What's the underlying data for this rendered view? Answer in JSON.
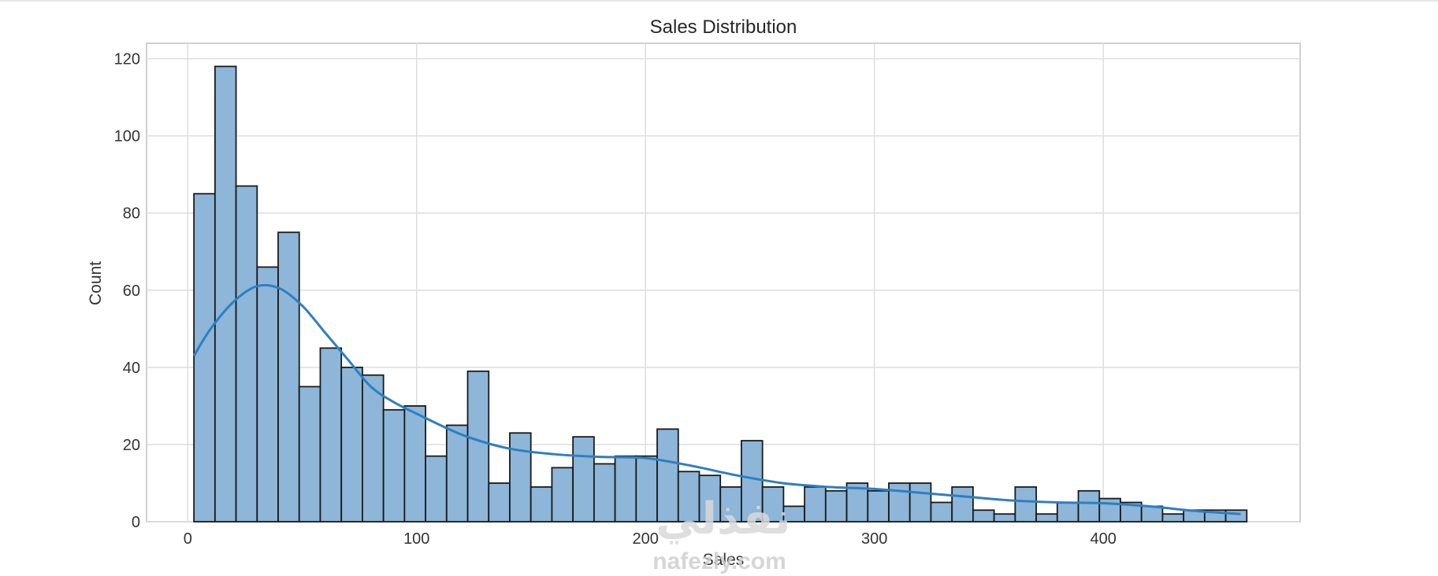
{
  "chart_data": {
    "type": "bar",
    "subtype": "histogram-with-kde",
    "title": "Sales Distribution",
    "xlabel": "Sales",
    "ylabel": "Count",
    "xlim": [
      -18,
      486
    ],
    "ylim": [
      0,
      124
    ],
    "xticks": [
      0,
      100,
      200,
      300,
      400
    ],
    "yticks": [
      0,
      20,
      40,
      60,
      80,
      100,
      120
    ],
    "grid": true,
    "bin_start": 2.7,
    "bin_width": 9.2,
    "counts": [
      85,
      118,
      87,
      66,
      75,
      35,
      45,
      40,
      38,
      29,
      30,
      17,
      25,
      39,
      10,
      23,
      9,
      14,
      22,
      15,
      17,
      17,
      24,
      13,
      12,
      9,
      21,
      9,
      4,
      9,
      8,
      10,
      8,
      10,
      10,
      5,
      9,
      3,
      2,
      9,
      2,
      5,
      8,
      6,
      5,
      4,
      2,
      3,
      3,
      3
    ],
    "kde": {
      "x": [
        2.7,
        10,
        20,
        30,
        40,
        50,
        60,
        70,
        80,
        90,
        100,
        120,
        140,
        160,
        180,
        200,
        220,
        240,
        260,
        280,
        300,
        320,
        340,
        360,
        380,
        400,
        420,
        440,
        460
      ],
      "y": [
        43,
        50,
        57,
        61,
        60.5,
        56,
        49,
        42,
        35,
        31,
        28,
        22.5,
        19,
        17.5,
        16.8,
        16.5,
        14.5,
        12,
        10,
        9,
        8.5,
        7.5,
        6.5,
        5.5,
        5,
        4.8,
        4,
        2.8,
        2
      ]
    },
    "colors": {
      "bar_fill": "#8db6d9",
      "bar_edge": "#1a1a1a",
      "kde_line": "#2e7fc0",
      "grid": "#dedede",
      "frame": "#d0d0d0"
    }
  },
  "watermark": {
    "arabic": "نفذلي",
    "latin": "nafezly.com"
  }
}
